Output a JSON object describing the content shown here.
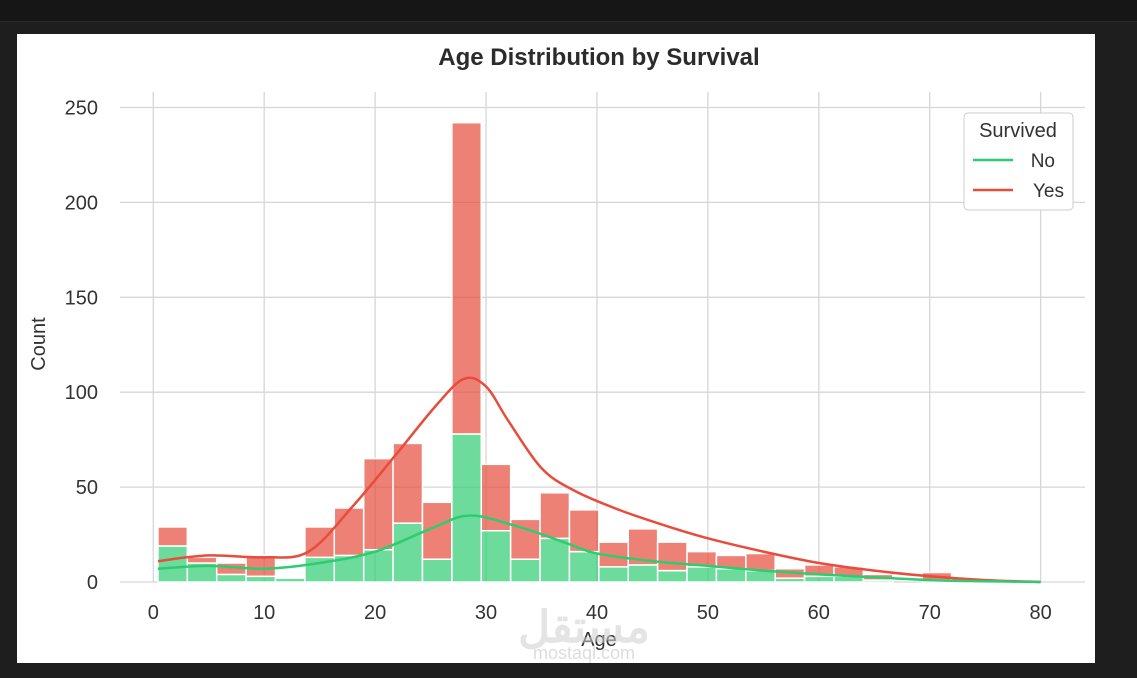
{
  "chart_data": {
    "type": "bar",
    "stacked": true,
    "title": "Age Distribution by Survival",
    "xlabel": "Age",
    "ylabel": "Count",
    "xlim": [
      -3,
      84
    ],
    "ylim": [
      0,
      255
    ],
    "xticks": [
      0,
      10,
      20,
      30,
      40,
      50,
      60,
      70,
      80
    ],
    "yticks": [
      0,
      50,
      100,
      150,
      200,
      250
    ],
    "grid": true,
    "legend": {
      "title": "Survived",
      "placement": "top-right"
    },
    "bins": [
      [
        0.42,
        3.07
      ],
      [
        3.07,
        5.72
      ],
      [
        5.72,
        8.37
      ],
      [
        8.37,
        11.02
      ],
      [
        11.02,
        13.67
      ],
      [
        13.67,
        16.32
      ],
      [
        16.32,
        18.97
      ],
      [
        18.97,
        21.62
      ],
      [
        21.62,
        24.27
      ],
      [
        24.27,
        26.92
      ],
      [
        26.92,
        29.57
      ],
      [
        29.57,
        32.22
      ],
      [
        32.22,
        34.87
      ],
      [
        34.87,
        37.52
      ],
      [
        37.52,
        40.17
      ],
      [
        40.17,
        42.82
      ],
      [
        42.82,
        45.47
      ],
      [
        45.47,
        48.12
      ],
      [
        48.12,
        50.77
      ],
      [
        50.77,
        53.42
      ],
      [
        53.42,
        56.07
      ],
      [
        56.07,
        58.72
      ],
      [
        58.72,
        61.37
      ],
      [
        61.37,
        64.02
      ],
      [
        64.02,
        66.67
      ],
      [
        66.67,
        69.32
      ],
      [
        69.32,
        71.97
      ],
      [
        71.97,
        74.62
      ],
      [
        74.62,
        77.27
      ],
      [
        77.27,
        79.92
      ]
    ],
    "series": [
      {
        "name": "No",
        "color": "#2ecc71",
        "values": [
          19,
          10,
          4,
          3,
          2,
          13,
          14,
          17,
          31,
          12,
          78,
          27,
          12,
          23,
          16,
          8,
          9,
          6,
          8,
          7,
          6,
          2,
          3,
          3,
          1,
          0,
          1,
          1,
          0,
          0
        ],
        "kde": [
          [
            0.42,
            7
          ],
          [
            5,
            8.5
          ],
          [
            10,
            7
          ],
          [
            15,
            10
          ],
          [
            20,
            16
          ],
          [
            25,
            28
          ],
          [
            28.5,
            35
          ],
          [
            33,
            29
          ],
          [
            37,
            21
          ],
          [
            40,
            15
          ],
          [
            45,
            11
          ],
          [
            50,
            8.5
          ],
          [
            55,
            6
          ],
          [
            60,
            4
          ],
          [
            65,
            2.5
          ],
          [
            70,
            1
          ],
          [
            75,
            0.4
          ],
          [
            80,
            0
          ]
        ]
      },
      {
        "name": "Yes",
        "color": "#e74c3c",
        "values": [
          10,
          3,
          6,
          11,
          0,
          16,
          25,
          48,
          42,
          30,
          164,
          35,
          21,
          24,
          22,
          13,
          19,
          15,
          8,
          7,
          9,
          5,
          6,
          5,
          3,
          0,
          4,
          1,
          0,
          0
        ],
        "kde": [
          [
            0.42,
            11
          ],
          [
            5,
            14
          ],
          [
            10,
            13
          ],
          [
            14,
            16
          ],
          [
            18,
            40
          ],
          [
            22,
            68
          ],
          [
            25.5,
            93
          ],
          [
            28,
            107
          ],
          [
            30,
            103
          ],
          [
            32,
            85
          ],
          [
            35,
            60
          ],
          [
            38,
            48
          ],
          [
            42,
            38
          ],
          [
            46,
            30
          ],
          [
            50,
            23
          ],
          [
            55,
            16
          ],
          [
            60,
            10
          ],
          [
            65,
            6
          ],
          [
            70,
            3
          ],
          [
            75,
            1
          ],
          [
            80,
            0
          ]
        ]
      }
    ]
  },
  "watermark": {
    "arabic": "مستقل",
    "latin": "mostaql.com"
  }
}
